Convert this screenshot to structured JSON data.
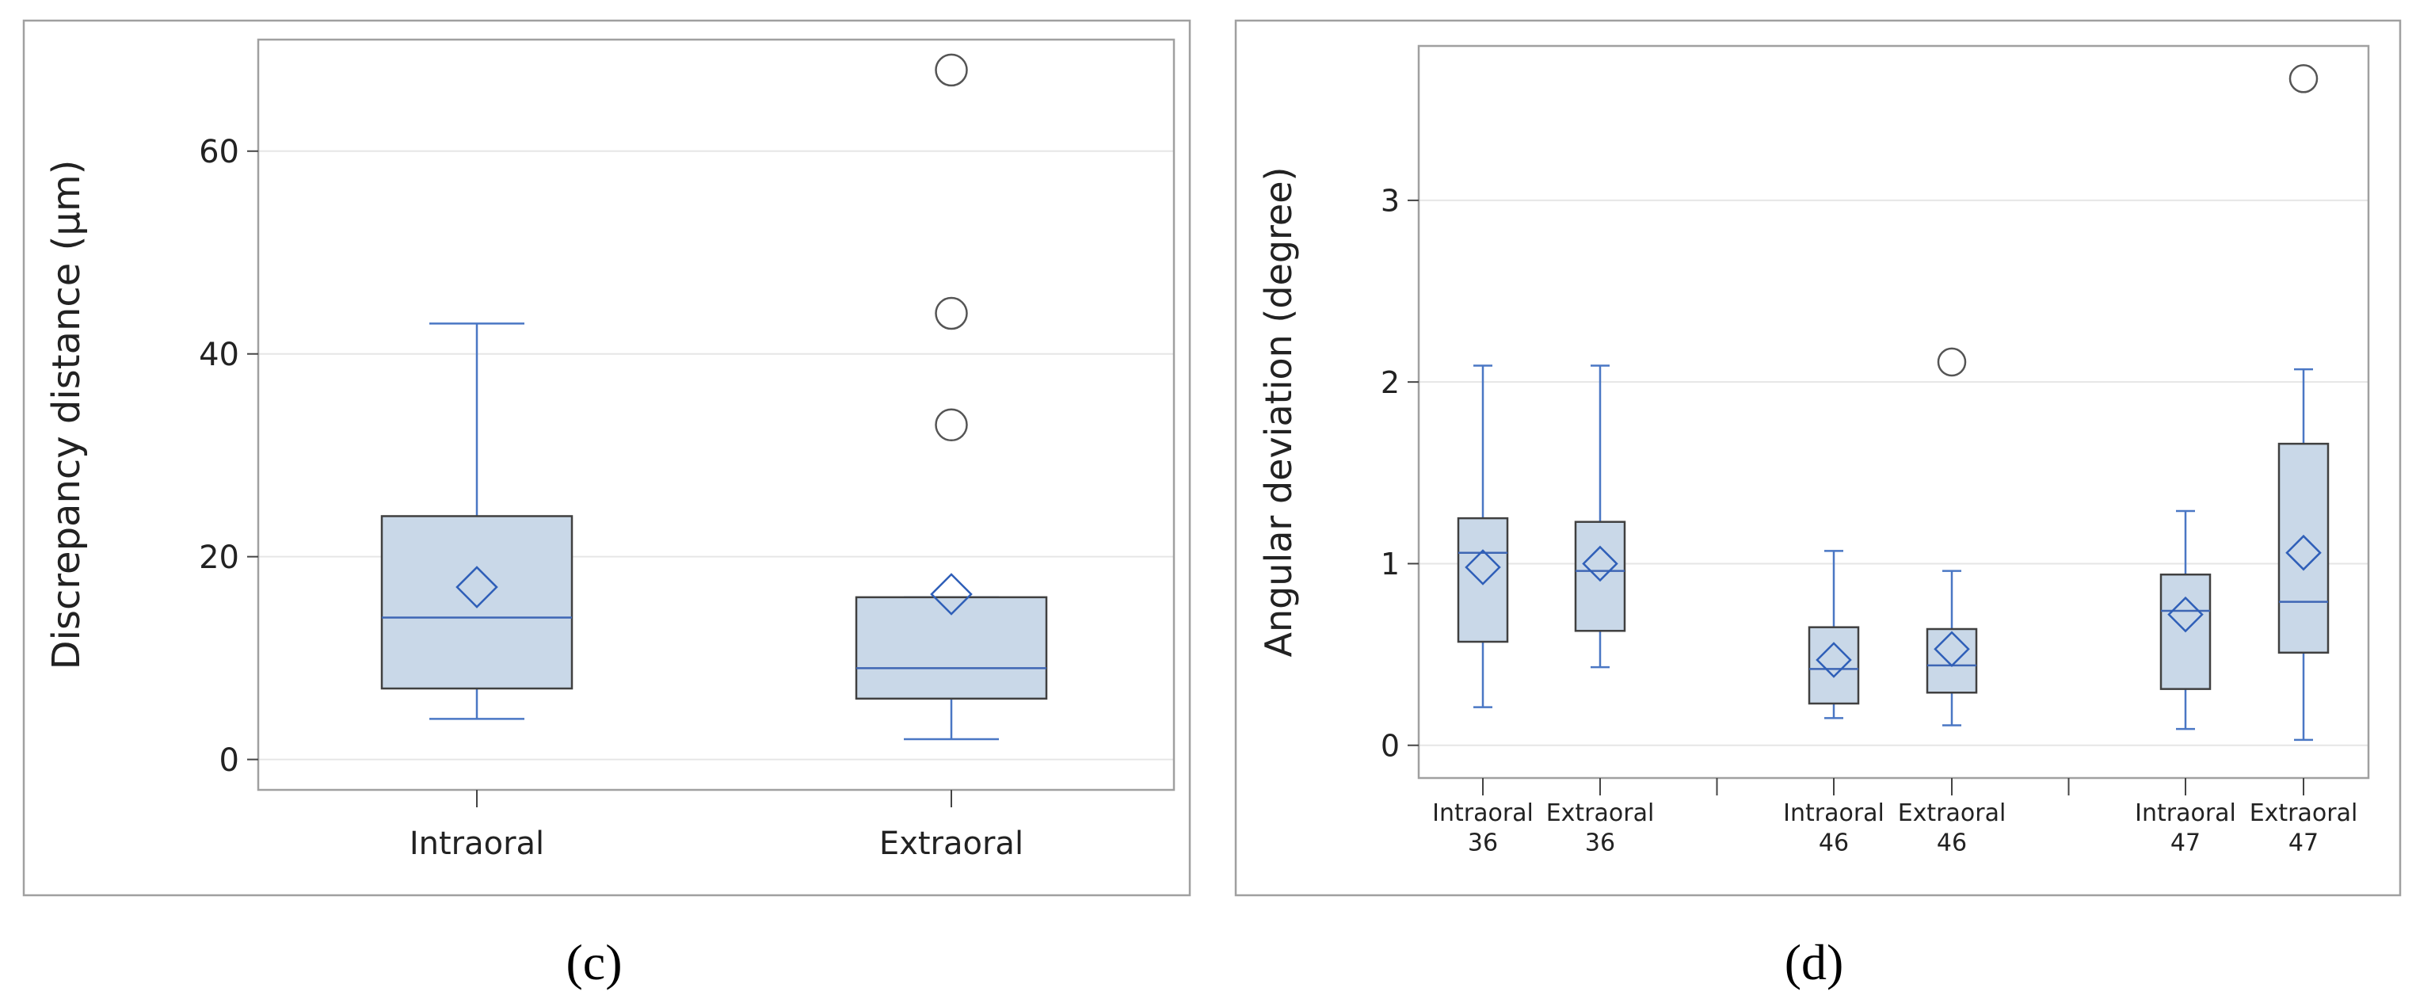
{
  "chart_data": [
    {
      "type": "boxplot",
      "ylabel": "Discrepancy distance (µm)",
      "ylim": [
        -3,
        71
      ],
      "yticks": [
        0,
        20,
        40,
        60
      ],
      "grid": "horizontal",
      "categories": [
        "Intraoral",
        "Extraoral"
      ],
      "boxes": [
        {
          "category": "Intraoral",
          "whisker_low": 4,
          "q1": 7,
          "median": 14,
          "q3": 24,
          "whisker_high": 43,
          "mean": 17,
          "outliers": []
        },
        {
          "category": "Extraoral",
          "whisker_low": 2,
          "q1": 6,
          "median": 9,
          "q3": 16,
          "whisker_high": 16,
          "mean": 16.3,
          "outliers": [
            33,
            44,
            68
          ]
        }
      ],
      "caption": "(c)"
    },
    {
      "type": "boxplot",
      "ylabel": "Angular deviation (degree)",
      "ylim": [
        -0.18,
        3.85
      ],
      "yticks": [
        0,
        1,
        2,
        3
      ],
      "grid": "horizontal",
      "categories": [
        "Intraoral\n36",
        "Extraoral\n36",
        "Intraoral\n46",
        "Extraoral\n46",
        "Intraoral\n47",
        "Extraoral\n47"
      ],
      "group_separators_after": [
        2,
        4
      ],
      "boxes": [
        {
          "category": "Intraoral 36",
          "whisker_low": 0.21,
          "q1": 0.57,
          "median": 1.06,
          "q3": 1.25,
          "whisker_high": 2.09,
          "mean": 0.98,
          "outliers": []
        },
        {
          "category": "Extraoral 36",
          "whisker_low": 0.43,
          "q1": 0.63,
          "median": 0.96,
          "q3": 1.23,
          "whisker_high": 2.09,
          "mean": 1.0,
          "outliers": []
        },
        {
          "category": "Intraoral 46",
          "whisker_low": 0.15,
          "q1": 0.23,
          "median": 0.42,
          "q3": 0.65,
          "whisker_high": 1.07,
          "mean": 0.47,
          "outliers": []
        },
        {
          "category": "Extraoral 46",
          "whisker_low": 0.11,
          "q1": 0.29,
          "median": 0.44,
          "q3": 0.64,
          "whisker_high": 0.96,
          "mean": 0.53,
          "outliers": [
            2.11
          ]
        },
        {
          "category": "Intraoral 47",
          "whisker_low": 0.09,
          "q1": 0.31,
          "median": 0.74,
          "q3": 0.94,
          "whisker_high": 1.29,
          "mean": 0.72,
          "outliers": []
        },
        {
          "category": "Extraoral 47",
          "whisker_low": 0.03,
          "q1": 0.51,
          "median": 0.79,
          "q3": 1.66,
          "whisker_high": 2.07,
          "mean": 1.06,
          "outliers": [
            3.67
          ]
        }
      ],
      "caption": "(d)"
    }
  ],
  "colors": {
    "box_fill": "#c9d8e8",
    "box_edge": "#404040",
    "whisker": "#4a77c4",
    "median": "#3e66b4",
    "mean_marker": "#2f5fb8",
    "outlier": "#555555",
    "grid": "#e6e6e6",
    "frame": "#a0a0a0"
  }
}
